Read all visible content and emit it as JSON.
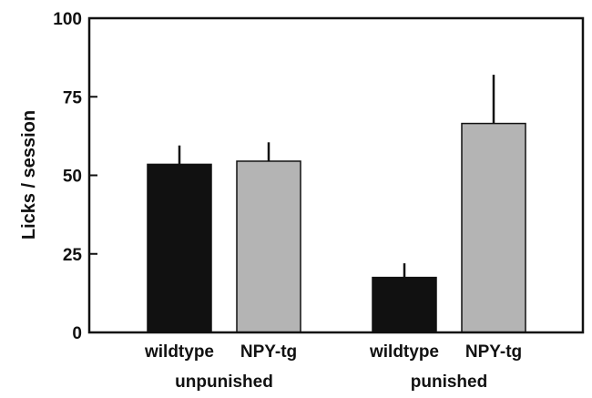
{
  "chart_data": {
    "type": "bar",
    "title": "",
    "xlabel": "",
    "ylabel": "Licks / session",
    "ylim": [
      0,
      100
    ],
    "yticks": [
      0,
      25,
      50,
      75,
      100
    ],
    "grid": false,
    "legend": "none",
    "groups": [
      {
        "label": "unpunished",
        "bars": [
          {
            "label": "wildtype",
            "value": 53.5,
            "error": 6.0,
            "color": "#111111"
          },
          {
            "label": "NPY-tg",
            "value": 54.5,
            "error": 6.0,
            "color": "#b4b4b4"
          }
        ]
      },
      {
        "label": "punished",
        "bars": [
          {
            "label": "wildtype",
            "value": 17.5,
            "error": 4.5,
            "color": "#111111"
          },
          {
            "label": "NPY-tg",
            "value": 66.5,
            "error": 15.5,
            "color": "#b4b4b4"
          }
        ]
      }
    ]
  }
}
